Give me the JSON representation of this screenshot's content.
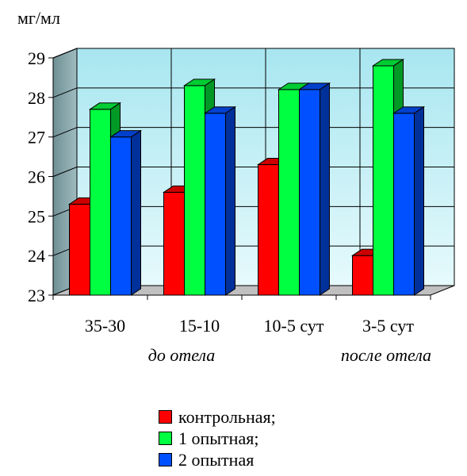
{
  "chart_data": {
    "type": "bar",
    "unit_label": "мг/мл",
    "categories": [
      "35-30",
      "15-10",
      "10-5 сут",
      "3-5 сут"
    ],
    "group_labels": [
      "до отела",
      "после отела"
    ],
    "ylim": [
      23,
      29
    ],
    "yticks": [
      "23",
      "24",
      "25",
      "26",
      "27",
      "28",
      "29"
    ],
    "grid": true,
    "legend_position": "bottom",
    "series": [
      {
        "name": "контрольная;",
        "color": "#ff0000",
        "values": [
          25.3,
          25.6,
          26.3,
          24.0
        ]
      },
      {
        "name": "1 опытная;",
        "color": "#00ff40",
        "values": [
          27.7,
          28.3,
          28.2,
          28.8
        ]
      },
      {
        "name": "2 опытная",
        "color": "#0050ff",
        "values": [
          27.0,
          27.6,
          28.2,
          27.6
        ]
      }
    ],
    "wall_color": "#bfeff4"
  }
}
